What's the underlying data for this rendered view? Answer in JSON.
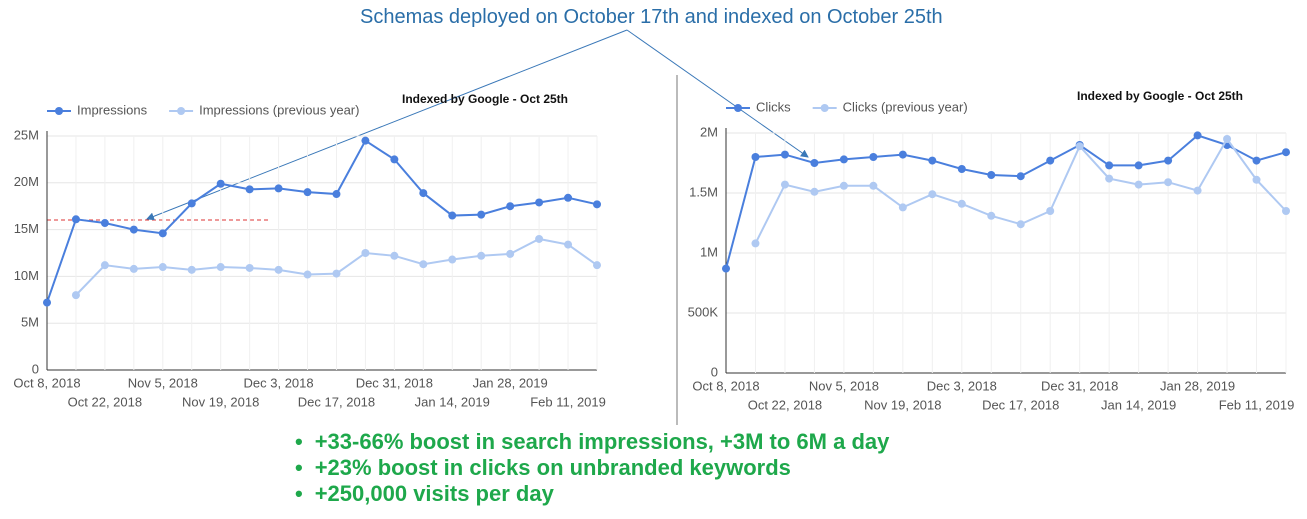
{
  "headline": "Schemas deployed on October 17th and indexed on October 25th",
  "bullets": [
    "+33-66% boost in search impressions, +3M to 6M a day",
    "+23% boost in clicks on unbranded keywords",
    "+250,000 visits per day"
  ],
  "chart_data": [
    {
      "type": "line",
      "annotation": "Indexed by Google - Oct 25th",
      "grid": true,
      "legend": "top-left",
      "categories": [
        "Oct 8, 2018",
        null,
        "Oct 22, 2018",
        null,
        "Nov 5, 2018",
        null,
        "Nov 19, 2018",
        null,
        "Dec 3, 2018",
        null,
        "Dec 17, 2018",
        null,
        "Dec 31, 2018",
        null,
        "Jan 14, 2019",
        null,
        "Jan 28, 2019",
        null,
        "Feb 11, 2019",
        null
      ],
      "ylim": [
        0,
        25000000
      ],
      "yticks": [
        0,
        {
          "value": 5000000,
          "label": "5M"
        },
        {
          "value": 10000000,
          "label": "10M"
        },
        {
          "value": 15000000,
          "label": "15M"
        },
        {
          "value": 20000000,
          "label": "20M"
        },
        {
          "value": 25000000,
          "label": "25M"
        }
      ],
      "series": [
        {
          "name": "Impressions",
          "color": "#4a7fdd",
          "values": [
            7200000,
            16100000,
            15700000,
            15000000,
            14600000,
            17800000,
            19900000,
            19300000,
            19400000,
            19000000,
            18800000,
            24500000,
            22500000,
            18900000,
            16500000,
            16600000,
            17500000,
            17900000,
            18400000,
            17700000
          ]
        },
        {
          "name": "Impressions (previous year)",
          "color": "#afc9f2",
          "values": [
            null,
            8000000,
            11200000,
            10800000,
            11000000,
            10700000,
            11000000,
            10900000,
            10700000,
            10200000,
            10300000,
            12500000,
            12200000,
            11300000,
            11800000,
            12200000,
            12400000,
            14000000,
            13400000,
            11200000
          ]
        }
      ]
    },
    {
      "type": "line",
      "annotation": "Indexed by Google - Oct 25th",
      "grid": true,
      "legend": "top-left",
      "categories": [
        "Oct 8, 2018",
        null,
        "Oct 22, 2018",
        null,
        "Nov 5, 2018",
        null,
        "Nov 19, 2018",
        null,
        "Dec 3, 2018",
        null,
        "Dec 17, 2018",
        null,
        "Dec 31, 2018",
        null,
        "Jan 14, 2019",
        null,
        "Jan 28, 2019",
        null,
        "Feb 11, 2019",
        null
      ],
      "ylim": [
        0,
        2000000
      ],
      "yticks": [
        0,
        {
          "value": 500000,
          "label": "500K"
        },
        {
          "value": 1000000,
          "label": "1M"
        },
        {
          "value": 1500000,
          "label": "1.5M"
        },
        {
          "value": 2000000,
          "label": "2M"
        }
      ],
      "series": [
        {
          "name": "Clicks",
          "color": "#4a7fdd",
          "values": [
            870000,
            1800000,
            1820000,
            1750000,
            1780000,
            1800000,
            1820000,
            1770000,
            1700000,
            1650000,
            1640000,
            1770000,
            1900000,
            1730000,
            1730000,
            1770000,
            1980000,
            1900000,
            1770000,
            1840000
          ]
        },
        {
          "name": "Clicks (previous year)",
          "color": "#afc9f2",
          "values": [
            null,
            1080000,
            1570000,
            1510000,
            1560000,
            1560000,
            1380000,
            1490000,
            1410000,
            1310000,
            1240000,
            1350000,
            1890000,
            1620000,
            1570000,
            1590000,
            1520000,
            1950000,
            1610000,
            1350000
          ]
        }
      ]
    }
  ]
}
